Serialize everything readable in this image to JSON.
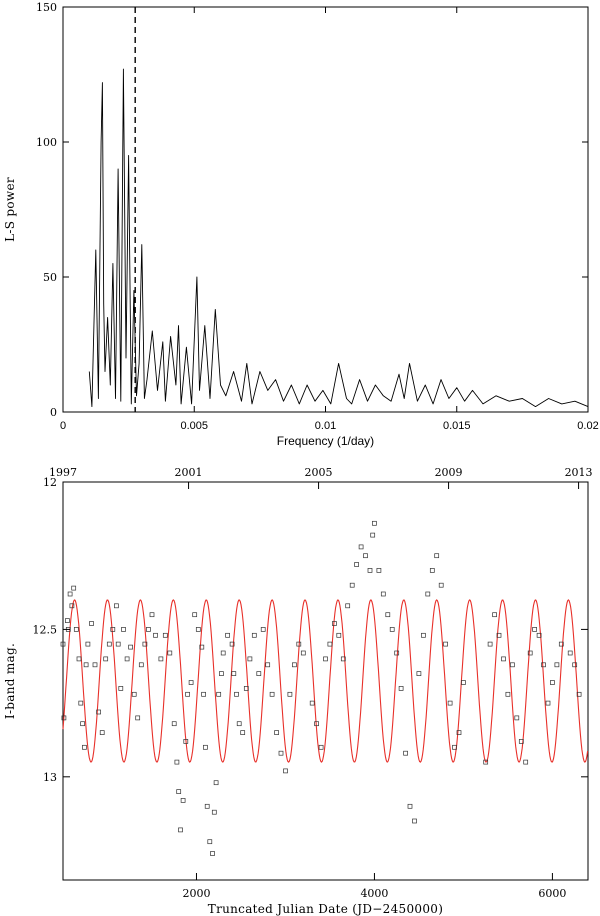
{
  "chart_data": [
    {
      "type": "line",
      "title": "",
      "xlabel": "Frequency (1/day)",
      "ylabel": "L-S power",
      "xlim": [
        0,
        0.02
      ],
      "ylim": [
        0,
        150
      ],
      "x_ticks": [
        0,
        0.005,
        0.01,
        0.015,
        0.02
      ],
      "x_tick_labels": [
        "0",
        "0.005",
        "0.01",
        "0.015",
        "0.02"
      ],
      "y_ticks": [
        0,
        50,
        100,
        150
      ],
      "y_tick_labels": [
        "0",
        "50",
        "100",
        "150"
      ],
      "grid": false,
      "vertical_marker": {
        "x": 0.00275,
        "style": "dashed"
      },
      "series": [
        {
          "x": [
            0.001,
            0.0011,
            0.00125,
            0.00135,
            0.00145,
            0.0015,
            0.00155,
            0.0016,
            0.0017,
            0.0018,
            0.0019,
            0.002,
            0.0021,
            0.0022,
            0.0023,
            0.0024,
            0.0025,
            0.0026,
            0.0027,
            0.0028,
            0.0029,
            0.003,
            0.0031,
            0.0032,
            0.0034,
            0.0036,
            0.0038,
            0.0039,
            0.0041,
            0.0043,
            0.0044,
            0.0045,
            0.0047,
            0.0049,
            0.0051,
            0.0052,
            0.0054,
            0.0056,
            0.0058,
            0.006,
            0.0062,
            0.0065,
            0.0068,
            0.007,
            0.0072,
            0.0075,
            0.0078,
            0.0081,
            0.0084,
            0.0087,
            0.009,
            0.0093,
            0.0096,
            0.0099,
            0.0102,
            0.0105,
            0.0108,
            0.011,
            0.0113,
            0.0116,
            0.0119,
            0.0122,
            0.0125,
            0.0128,
            0.013,
            0.0132,
            0.0135,
            0.0138,
            0.0141,
            0.0144,
            0.0147,
            0.015,
            0.0153,
            0.0156,
            0.016,
            0.0165,
            0.017,
            0.0175,
            0.018,
            0.0185,
            0.019,
            0.0195,
            0.02
          ],
          "values": [
            15,
            2,
            60,
            5,
            100,
            122,
            40,
            15,
            35,
            10,
            55,
            5,
            90,
            4,
            127,
            20,
            95,
            3,
            45,
            6,
            18,
            62,
            5,
            12,
            30,
            8,
            26,
            4,
            28,
            10,
            32,
            3,
            24,
            3,
            50,
            8,
            32,
            5,
            38,
            10,
            6,
            15,
            4,
            18,
            3,
            15,
            8,
            12,
            4,
            10,
            3,
            10,
            4,
            8,
            3,
            18,
            5,
            3,
            12,
            4,
            10,
            6,
            4,
            14,
            5,
            18,
            4,
            10,
            3,
            12,
            5,
            9,
            4,
            8,
            3,
            6,
            4,
            5,
            2,
            5,
            3,
            4,
            2
          ]
        }
      ]
    },
    {
      "type": "scatter",
      "title": "",
      "xlabel": "Truncated Julian Date (JD−2450000)",
      "ylabel": "I-band mag.",
      "xlim": [
        500,
        6400
      ],
      "ylim": [
        13.35,
        12.0
      ],
      "y_inverted": true,
      "x_ticks": [
        2000,
        4000,
        6000
      ],
      "x_tick_labels": [
        "2000",
        "4000",
        "6000"
      ],
      "y_ticks": [
        12,
        12.5,
        13
      ],
      "y_tick_labels": [
        "12",
        "12.5",
        "13"
      ],
      "top_axis_ticks_year": [
        1997,
        2001,
        2005,
        2009,
        2013
      ],
      "top_axis_tick_labels": [
        "1997",
        "2001",
        "2005",
        "2009",
        "2013"
      ],
      "top_axis_jd": [
        450,
        1911,
        3372,
        4833,
        6294
      ],
      "grid": false,
      "model_curve": {
        "color": "#e8302a",
        "period_days": 370,
        "mean_mag": 12.675,
        "amplitude_mag": 0.275,
        "phase_jd": 630
      },
      "series": [
        {
          "name": "",
          "marker": "open-square",
          "x": [
            500,
            510,
            550,
            560,
            580,
            600,
            620,
            650,
            680,
            700,
            720,
            740,
            760,
            780,
            820,
            860,
            900,
            940,
            980,
            1020,
            1060,
            1100,
            1120,
            1150,
            1180,
            1220,
            1260,
            1300,
            1340,
            1380,
            1420,
            1460,
            1500,
            1540,
            1600,
            1650,
            1700,
            1750,
            1780,
            1800,
            1820,
            1850,
            1880,
            1900,
            1940,
            1980,
            2020,
            2060,
            2080,
            2100,
            2120,
            2150,
            2180,
            2200,
            2220,
            2250,
            2280,
            2300,
            2350,
            2400,
            2420,
            2450,
            2480,
            2520,
            2560,
            2600,
            2650,
            2700,
            2750,
            2800,
            2850,
            2900,
            2950,
            3000,
            3050,
            3100,
            3150,
            3200,
            3300,
            3350,
            3400,
            3450,
            3500,
            3550,
            3600,
            3650,
            3700,
            3750,
            3800,
            3850,
            3900,
            3950,
            3980,
            4000,
            4050,
            4100,
            4150,
            4200,
            4250,
            4300,
            4350,
            4400,
            4450,
            4500,
            4550,
            4600,
            4650,
            4700,
            4750,
            4800,
            4850,
            4900,
            4950,
            5000,
            5250,
            5300,
            5350,
            5400,
            5450,
            5500,
            5550,
            5600,
            5650,
            5700,
            5750,
            5800,
            5850,
            5900,
            5950,
            6000,
            6050,
            6100,
            6200,
            6250,
            6300
          ],
          "values": [
            12.55,
            12.8,
            12.47,
            12.5,
            12.38,
            12.42,
            12.36,
            12.5,
            12.6,
            12.75,
            12.82,
            12.9,
            12.62,
            12.55,
            12.48,
            12.62,
            12.78,
            12.85,
            12.6,
            12.55,
            12.5,
            12.42,
            12.55,
            12.7,
            12.5,
            12.6,
            12.56,
            12.72,
            12.8,
            12.62,
            12.55,
            12.5,
            12.45,
            12.52,
            12.6,
            12.52,
            12.58,
            12.82,
            12.95,
            13.05,
            13.18,
            13.08,
            12.88,
            12.72,
            12.68,
            12.45,
            12.5,
            12.56,
            12.72,
            12.9,
            13.1,
            13.22,
            13.26,
            13.12,
            13.02,
            12.72,
            12.65,
            12.58,
            12.52,
            12.55,
            12.65,
            12.72,
            12.82,
            12.85,
            12.7,
            12.6,
            12.52,
            12.65,
            12.5,
            12.62,
            12.72,
            12.85,
            12.92,
            12.98,
            12.72,
            12.62,
            12.55,
            12.58,
            12.75,
            12.82,
            12.9,
            12.6,
            12.55,
            12.48,
            12.52,
            12.6,
            12.42,
            12.35,
            12.28,
            12.22,
            12.25,
            12.3,
            12.18,
            12.14,
            12.3,
            12.38,
            12.45,
            12.5,
            12.58,
            12.7,
            12.92,
            13.1,
            13.15,
            12.65,
            12.52,
            12.38,
            12.3,
            12.25,
            12.35,
            12.55,
            12.75,
            12.9,
            12.85,
            12.68,
            12.95,
            12.55,
            12.45,
            12.52,
            12.6,
            12.72,
            12.62,
            12.8,
            12.88,
            12.95,
            12.58,
            12.5,
            12.52,
            12.62,
            12.75,
            12.68,
            12.62,
            12.55,
            12.58,
            12.62,
            12.72
          ]
        }
      ]
    }
  ]
}
